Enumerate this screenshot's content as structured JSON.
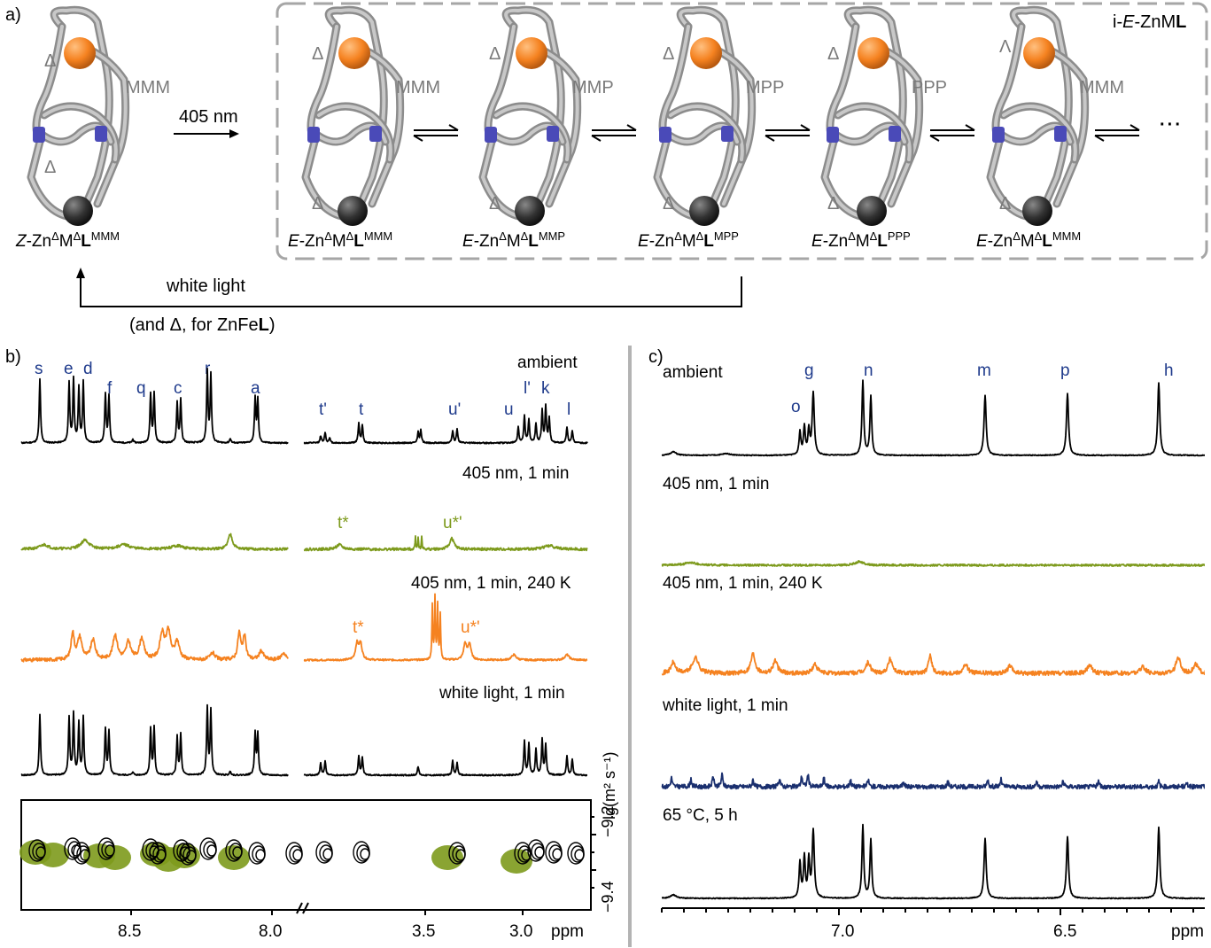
{
  "panel_a": {
    "label": "a)",
    "arrow_label": "405 nm",
    "box_label_prefix": "i-",
    "box_label_italic": "E",
    "box_label_mid": "-ZnM",
    "box_label_bold": "L",
    "return_label_1": "white light",
    "return_label_2_pre": "(and Δ, for ZnFe",
    "return_label_2_bold": "L",
    "return_label_2_post": ")",
    "delta": "Δ",
    "lambda": "Λ",
    "ellipsis": "···",
    "structures": [
      {
        "conf": "MMM",
        "top": "Δ",
        "bottom": "Δ",
        "prefix": "Z",
        "sup": "MMM"
      },
      {
        "conf": "MMM",
        "top": "Δ",
        "bottom": "Δ",
        "prefix": "E",
        "sup": "MMM"
      },
      {
        "conf": "MMP",
        "top": "Δ",
        "bottom": "Δ",
        "prefix": "E",
        "sup": "MMP"
      },
      {
        "conf": "MPP",
        "top": "Δ",
        "bottom": "Δ",
        "prefix": "E",
        "sup": "MPP"
      },
      {
        "conf": "PPP",
        "top": "Δ",
        "bottom": "Δ",
        "prefix": "E",
        "sup": "PPP"
      },
      {
        "conf": "MMM",
        "top": "Λ",
        "bottom": "Δ",
        "prefix": "E",
        "sup": "MMM"
      }
    ],
    "name_parts": {
      "zn": "-Zn",
      "d": "Δ",
      "m": "M",
      "l": "L"
    }
  },
  "panel_b": {
    "label": "b)",
    "spectra": [
      {
        "title": "ambient",
        "color": "#000000"
      },
      {
        "title": "405 nm, 1 min",
        "color": "#7d9a1c"
      },
      {
        "title": "405 nm, 1 min, 240 K",
        "color": "#f58220"
      },
      {
        "title": "white light, 1 min",
        "color": "#000000"
      }
    ],
    "peak_labels": [
      "s",
      "e",
      "d",
      "f",
      "q",
      "c",
      "r",
      "a",
      "t'",
      "t",
      "u'",
      "u",
      "l'",
      "k",
      "l"
    ],
    "olive_labels": [
      "t*",
      "u*'"
    ],
    "orange_labels": [
      "t*",
      "u*'"
    ],
    "x_ticks_left": [
      "8.5",
      "8.0"
    ],
    "x_ticks_right": [
      "3.5",
      "3.0"
    ],
    "x_unit": "ppm",
    "y_axis_title": "lg(m² s⁻¹)",
    "y_ticks": [
      "−9.2",
      "−9.4"
    ],
    "contour_colors": [
      "#000000",
      "#7d9a1c"
    ]
  },
  "panel_c": {
    "label": "c)",
    "spectra": [
      {
        "title": "ambient",
        "color": "#000000"
      },
      {
        "title": "405 nm, 1 min",
        "color": "#7d9a1c"
      },
      {
        "title": "405 nm, 1 min, 240 K",
        "color": "#f58220"
      },
      {
        "title": "white light, 1 min",
        "color": "#1a2f6e"
      },
      {
        "title": "65 °C, 5 h",
        "color": "#000000"
      }
    ],
    "peak_labels": [
      "g",
      "n",
      "m",
      "p",
      "h",
      "o"
    ],
    "x_ticks": [
      "7.0",
      "6.5"
    ],
    "x_unit": "ppm"
  }
}
